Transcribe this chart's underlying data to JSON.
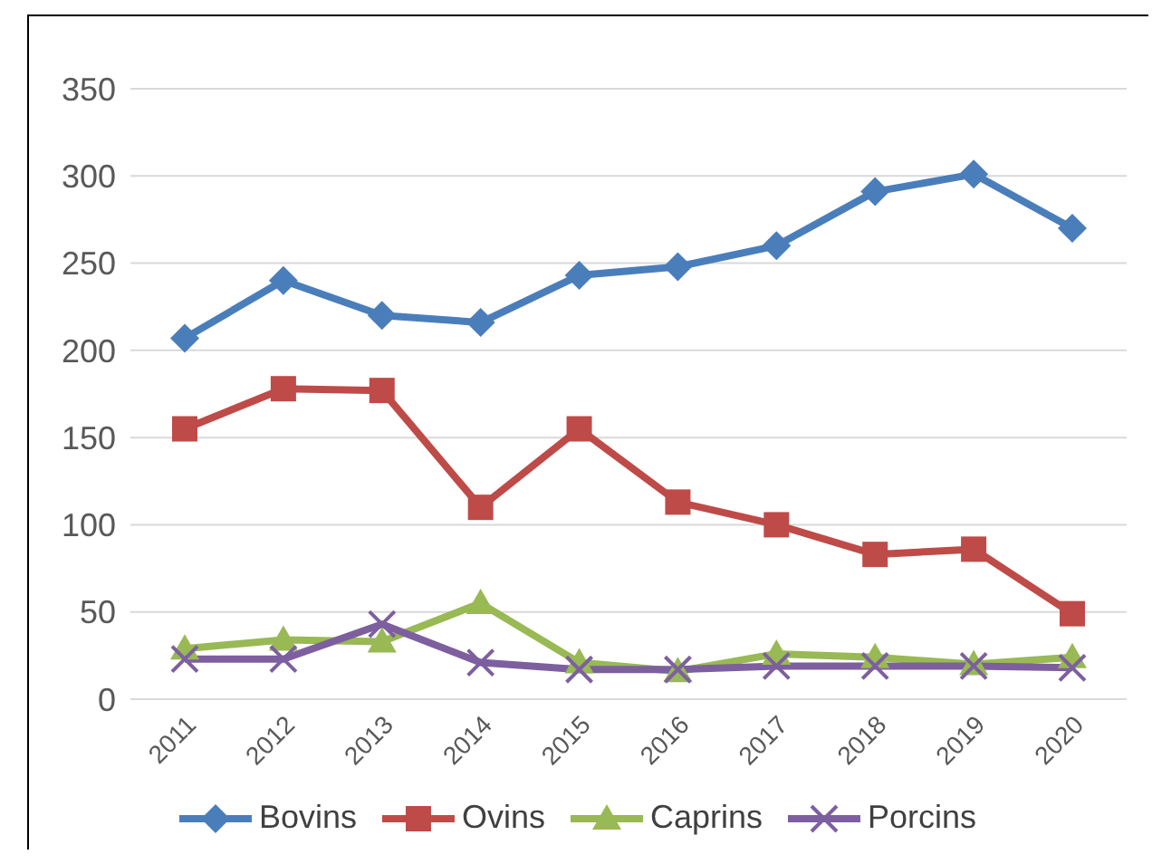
{
  "chart_data": {
    "type": "line",
    "categories": [
      "2011",
      "2012",
      "2013",
      "2014",
      "2015",
      "2016",
      "2017",
      "2018",
      "2019",
      "2020"
    ],
    "series": [
      {
        "name": "Bovins",
        "color": "#4a7ebb",
        "marker": "diamond",
        "values": [
          207,
          240,
          220,
          216,
          243,
          248,
          260,
          291,
          301,
          270
        ]
      },
      {
        "name": "Ovins",
        "color": "#be4b48",
        "marker": "square",
        "values": [
          155,
          178,
          177,
          110,
          155,
          113,
          100,
          83,
          86,
          49
        ]
      },
      {
        "name": "Caprins",
        "color": "#98b954",
        "marker": "triangle",
        "values": [
          29,
          34,
          33,
          55,
          21,
          16,
          26,
          24,
          20,
          24
        ]
      },
      {
        "name": "Porcins",
        "color": "#7d5fa0",
        "marker": "cross",
        "values": [
          23,
          23,
          43,
          21,
          17,
          17,
          19,
          19,
          19,
          18
        ]
      }
    ],
    "ylim": [
      0,
      350
    ],
    "yticks": [
      0,
      50,
      100,
      150,
      200,
      250,
      300,
      350
    ],
    "grid": "y",
    "legend": "bottom",
    "line_style": "solid"
  }
}
